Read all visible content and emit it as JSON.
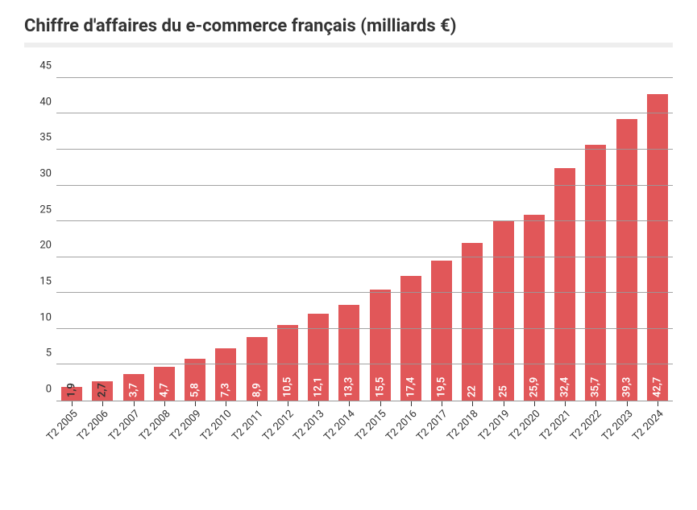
{
  "chart": {
    "type": "bar",
    "title": "Chiffre d'affaires du e-commerce français (milliards €)",
    "title_fontsize": 22,
    "title_color": "#333333",
    "underline_color": "#eeeeee",
    "background_color": "#ffffff",
    "bar_color": "#e15759",
    "bar_width_ratio": 0.68,
    "axis_color": "#999999",
    "tick_color": "#333333",
    "grid_on": true,
    "label_fontsize": 13,
    "ylim": [
      0,
      47
    ],
    "yticks": [
      0,
      5,
      10,
      15,
      20,
      25,
      30,
      35,
      40,
      45
    ],
    "x_label_rotation_deg": -45,
    "bar_label_rotation_deg": -90,
    "light_label_color": "#ffffff",
    "dark_label_color": "#333333",
    "dark_label_threshold": 3.0,
    "categories": [
      "T2 2005",
      "T2 2006",
      "T2 2007",
      "T2 2008",
      "T2 2009",
      "T2 2010",
      "T2 2011",
      "T2 2012",
      "T2 2013",
      "T2 2014",
      "T2 2015",
      "T2 2016",
      "T2 2017",
      "T2 2018",
      "T2 2019",
      "T2 2020",
      "T2 2021",
      "T2 2022",
      "T2 2023",
      "T2 2024"
    ],
    "values": [
      1.9,
      2.7,
      3.7,
      4.7,
      5.8,
      7.3,
      8.9,
      10.5,
      12.1,
      13.3,
      15.5,
      17.4,
      19.5,
      22,
      25,
      25.9,
      32.4,
      35.7,
      39.3,
      42.7
    ],
    "value_labels": [
      "1,9",
      "2,7",
      "3,7",
      "4,7",
      "5,8",
      "7,3",
      "8,9",
      "10,5",
      "12,1",
      "13,3",
      "15,5",
      "17,4",
      "19,5",
      "22",
      "25",
      "25,9",
      "32,4",
      "35,7",
      "39,3",
      "42,7"
    ]
  }
}
